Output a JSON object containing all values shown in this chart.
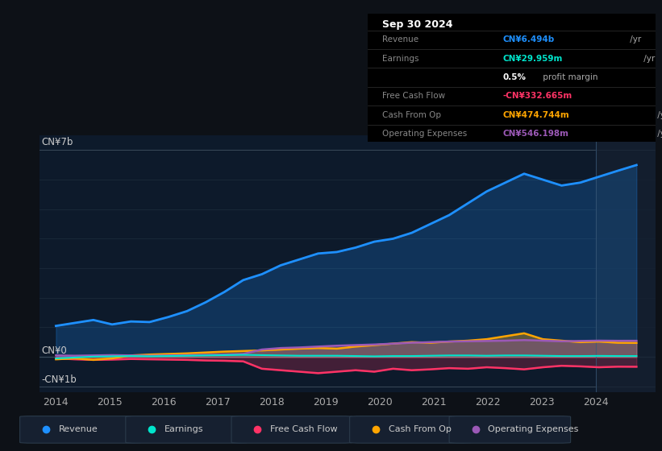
{
  "bg_color": "#0d1117",
  "chart_bg": "#0d1a2b",
  "ylabel_top": "CN¥7b",
  "ylabel_zero": "CN¥0",
  "ylabel_neg": "-CN¥1b",
  "x_labels": [
    "2014",
    "2015",
    "2016",
    "2017",
    "2018",
    "2019",
    "2020",
    "2021",
    "2022",
    "2023",
    "2024"
  ],
  "ylim": [
    -1200000000.0,
    7500000000.0
  ],
  "series": {
    "Revenue": {
      "color": "#1e90ff",
      "linewidth": 2.0,
      "values": [
        1050000000.0,
        1150000000.0,
        1250000000.0,
        1100000000.0,
        1200000000.0,
        1180000000.0,
        1350000000.0,
        1550000000.0,
        1850000000.0,
        2200000000.0,
        2600000000.0,
        2800000000.0,
        3100000000.0,
        3300000000.0,
        3500000000.0,
        3550000000.0,
        3700000000.0,
        3900000000.0,
        4000000000.0,
        4200000000.0,
        4500000000.0,
        4800000000.0,
        5200000000.0,
        5600000000.0,
        5900000000.0,
        6200000000.0,
        6000000000.0,
        5800000000.0,
        5900000000.0,
        6100000000.0,
        6300000000.0,
        6494000000.0
      ]
    },
    "Earnings": {
      "color": "#00e5cc",
      "linewidth": 1.5,
      "values": [
        -50000000.0,
        -20000000.0,
        10000000.0,
        20000000.0,
        30000000.0,
        20000000.0,
        30000000.0,
        40000000.0,
        50000000.0,
        60000000.0,
        70000000.0,
        60000000.0,
        50000000.0,
        40000000.0,
        40000000.0,
        40000000.0,
        30000000.0,
        20000000.0,
        30000000.0,
        30000000.0,
        40000000.0,
        50000000.0,
        50000000.0,
        40000000.0,
        50000000.0,
        50000000.0,
        40000000.0,
        30000000.0,
        30000000.0,
        35000000.0,
        30000000.0,
        30000000.0
      ]
    },
    "Free Cash Flow": {
      "color": "#ff3366",
      "linewidth": 1.8,
      "values": [
        -50000000.0,
        -80000000.0,
        -100000000.0,
        -90000000.0,
        -70000000.0,
        -80000000.0,
        -90000000.0,
        -100000000.0,
        -120000000.0,
        -130000000.0,
        -150000000.0,
        -400000000.0,
        -450000000.0,
        -500000000.0,
        -550000000.0,
        -500000000.0,
        -450000000.0,
        -500000000.0,
        -400000000.0,
        -450000000.0,
        -420000000.0,
        -380000000.0,
        -400000000.0,
        -350000000.0,
        -380000000.0,
        -420000000.0,
        -350000000.0,
        -300000000.0,
        -320000000.0,
        -350000000.0,
        -330000000.0,
        -333000000.0
      ]
    },
    "Cash From Op": {
      "color": "#ffa500",
      "linewidth": 1.8,
      "values": [
        -80000000.0,
        -50000000.0,
        -100000000.0,
        -50000000.0,
        50000000.0,
        80000000.0,
        100000000.0,
        120000000.0,
        150000000.0,
        180000000.0,
        200000000.0,
        220000000.0,
        250000000.0,
        280000000.0,
        300000000.0,
        280000000.0,
        350000000.0,
        400000000.0,
        450000000.0,
        500000000.0,
        480000000.0,
        520000000.0,
        550000000.0,
        600000000.0,
        700000000.0,
        800000000.0,
        600000000.0,
        550000000.0,
        500000000.0,
        520000000.0,
        480000000.0,
        475000000.0
      ]
    },
    "Operating Expenses": {
      "color": "#9b59b6",
      "linewidth": 1.8,
      "values": [
        50000000.0,
        40000000.0,
        50000000.0,
        60000000.0,
        50000000.0,
        40000000.0,
        50000000.0,
        60000000.0,
        70000000.0,
        80000000.0,
        100000000.0,
        250000000.0,
        300000000.0,
        320000000.0,
        350000000.0,
        380000000.0,
        400000000.0,
        420000000.0,
        450000000.0,
        480000000.0,
        500000000.0,
        520000000.0,
        530000000.0,
        540000000.0,
        550000000.0,
        570000000.0,
        550000000.0,
        530000000.0,
        540000000.0,
        550000000.0,
        545000000.0,
        546000000.0
      ]
    }
  },
  "info_box": {
    "title": "Sep 30 2024",
    "rows": [
      {
        "label": "Revenue",
        "value": "CN¥6.494b /yr",
        "value_color": "#1e90ff",
        "bold_value": "CN¥6.494b"
      },
      {
        "label": "Earnings",
        "value": "CN¥29.959m /yr",
        "value_color": "#00e5cc",
        "bold_value": "CN¥29.959m"
      },
      {
        "label": "",
        "value": "0.5% profit margin",
        "value_color": "#ffffff",
        "bold_value": "0.5%"
      },
      {
        "label": "Free Cash Flow",
        "value": "-CN¥332.665m /yr",
        "value_color": "#ff3366",
        "bold_value": "-CN¥332.665m"
      },
      {
        "label": "Cash From Op",
        "value": "CN¥474.744m /yr",
        "value_color": "#ffa500",
        "bold_value": "CN¥474.744m"
      },
      {
        "label": "Operating Expenses",
        "value": "CN¥546.198m /yr",
        "value_color": "#9b59b6",
        "bold_value": "CN¥546.198m"
      }
    ]
  },
  "legend": [
    {
      "label": "Revenue",
      "color": "#1e90ff"
    },
    {
      "label": "Earnings",
      "color": "#00e5cc"
    },
    {
      "label": "Free Cash Flow",
      "color": "#ff3366"
    },
    {
      "label": "Cash From Op",
      "color": "#ffa500"
    },
    {
      "label": "Operating Expenses",
      "color": "#9b59b6"
    }
  ]
}
